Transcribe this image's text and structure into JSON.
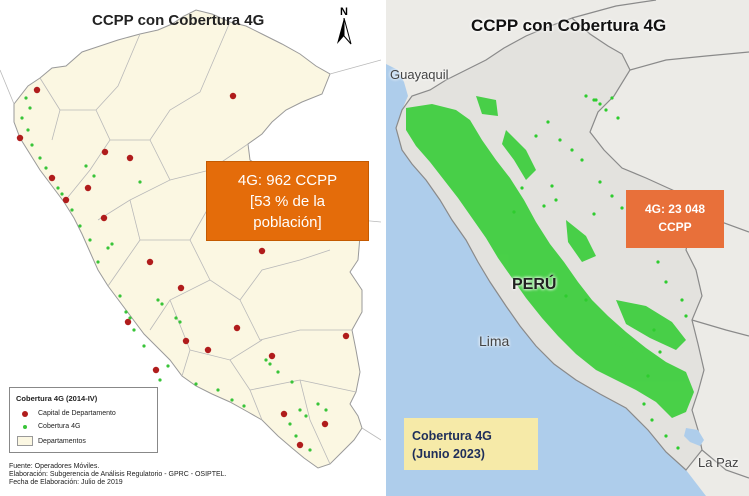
{
  "left_map": {
    "title": "CCPP con Cobertura 4G",
    "north_label": "N",
    "stat_box": {
      "line1": "4G: 962 CCPP",
      "line2": "[53 % de la",
      "line3": "población]"
    },
    "legend": {
      "title": "Cobertura 4G (2014-IV)",
      "items": [
        {
          "label": "Capital de Departamento",
          "symbol": "red-dot"
        },
        {
          "label": "Cobertura 4G",
          "symbol": "green-dot"
        },
        {
          "label": "Departamentos",
          "symbol": "area"
        }
      ]
    },
    "source": {
      "line1": "Fuente: Operadores Móviles.",
      "line2": "Elaboración: Subgerencia de Análisis Regulatorio - GPRC - OSIPTEL.",
      "line3": "Fecha de Elaboración: Julio de 2019"
    }
  },
  "right_map": {
    "title": "CCPP con Cobertura 4G",
    "places": {
      "guayaquil": "Guayaquil",
      "peru": "PERÚ",
      "lima": "Lima",
      "lapaz": "La Paz"
    },
    "stat_box": {
      "line1": "4G: 23 048",
      "line2": "CCPP"
    },
    "legend": {
      "line1": "Cobertura 4G",
      "line2": "(Junio 2023)"
    }
  },
  "colors": {
    "stat_box_left": "#e46c0a",
    "stat_box_right": "#e8703a",
    "coverage_green": "#39c439",
    "capital_red": "#b01c1c",
    "legend_right_bg": "#f6eaa8",
    "ocean": "#aecdeb"
  }
}
